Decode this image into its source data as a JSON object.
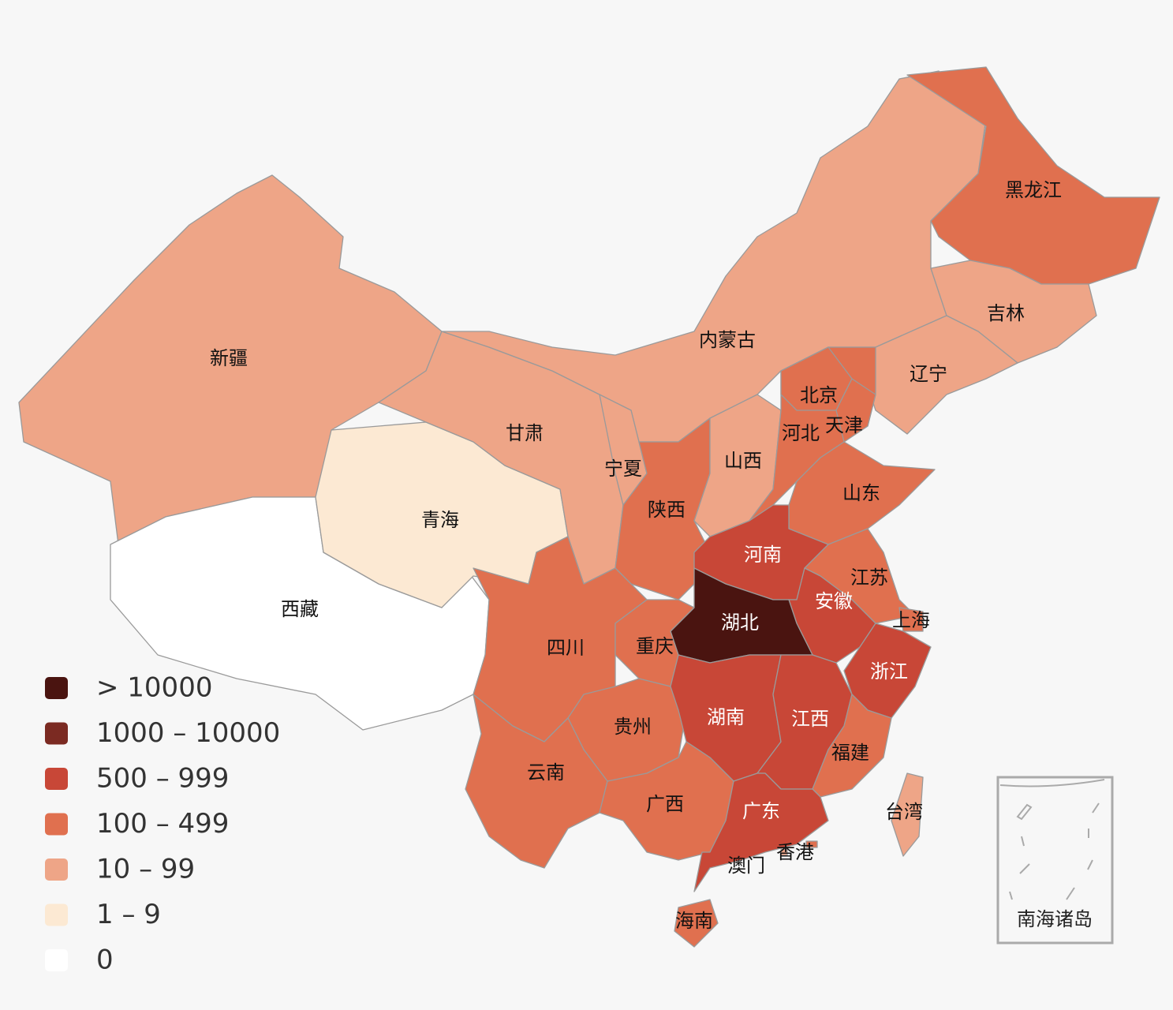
{
  "legend": [
    {
      "label": "> 10000",
      "color": "#4a1410"
    },
    {
      "label": "1000 – 10000",
      "color": "#7b2a22"
    },
    {
      "label": "500 – 999",
      "color": "#c84737"
    },
    {
      "label": "100 – 499",
      "color": "#e0704f"
    },
    {
      "label": "10 – 99",
      "color": "#eea587"
    },
    {
      "label": "1 – 9",
      "color": "#fce9d3"
    },
    {
      "label": "0",
      "color": "#ffffff"
    }
  ],
  "regions": [
    {
      "name": "新疆",
      "level": 4
    },
    {
      "name": "西藏",
      "level": 6
    },
    {
      "name": "青海",
      "level": 5
    },
    {
      "name": "甘肃",
      "level": 4
    },
    {
      "name": "内蒙古",
      "level": 4
    },
    {
      "name": "宁夏",
      "level": 4
    },
    {
      "name": "陕西",
      "level": 3
    },
    {
      "name": "山西",
      "level": 4
    },
    {
      "name": "黑龙江",
      "level": 3
    },
    {
      "name": "吉林",
      "level": 4
    },
    {
      "name": "辽宁",
      "level": 4
    },
    {
      "name": "河北",
      "level": 3
    },
    {
      "name": "北京",
      "level": 3
    },
    {
      "name": "天津",
      "level": 3
    },
    {
      "name": "山东",
      "level": 3
    },
    {
      "name": "河南",
      "level": 2
    },
    {
      "name": "江苏",
      "level": 3
    },
    {
      "name": "上海",
      "level": 3
    },
    {
      "name": "安徽",
      "level": 2
    },
    {
      "name": "湖北",
      "level": 0
    },
    {
      "name": "浙江",
      "level": 2
    },
    {
      "name": "四川",
      "level": 3
    },
    {
      "name": "重庆",
      "level": 3
    },
    {
      "name": "贵州",
      "level": 3
    },
    {
      "name": "云南",
      "level": 3
    },
    {
      "name": "湖南",
      "level": 2
    },
    {
      "name": "江西",
      "level": 2
    },
    {
      "name": "福建",
      "level": 3
    },
    {
      "name": "广西",
      "level": 3
    },
    {
      "name": "广东",
      "level": 2
    },
    {
      "name": "海南",
      "level": 3
    },
    {
      "name": "台湾",
      "level": 4
    },
    {
      "name": "香港",
      "level": 3
    },
    {
      "name": "澳门",
      "level": 4
    }
  ],
  "inset_label": "南海诸岛"
}
